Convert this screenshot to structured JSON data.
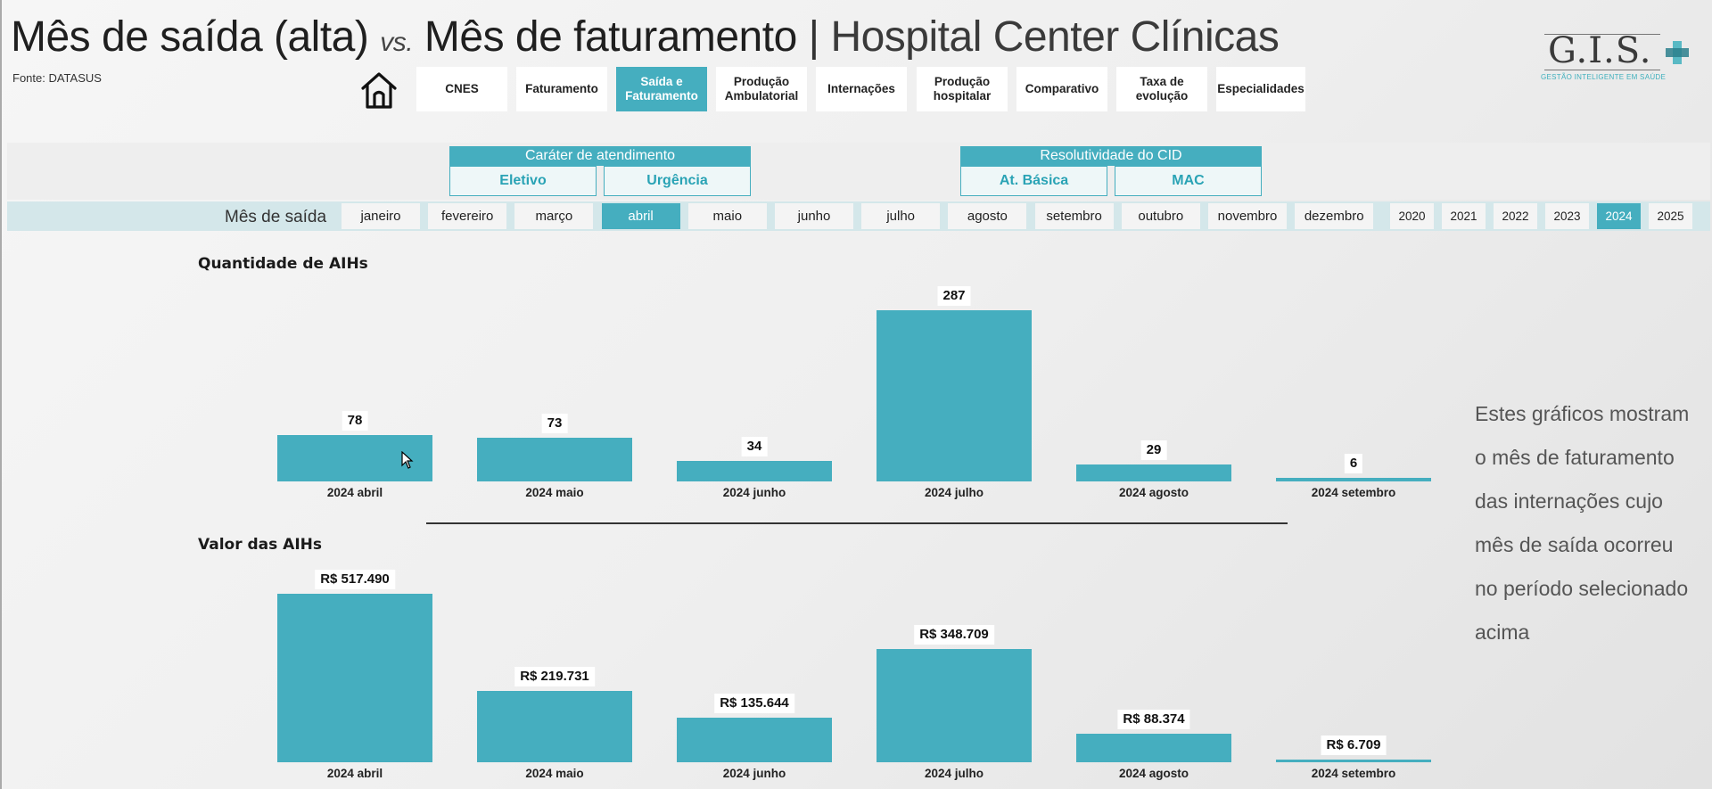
{
  "header": {
    "title_part1": "Mês de saída (alta)",
    "title_vs": "vs.",
    "title_part2": "Mês de faturamento",
    "title_sep": "|",
    "title_part3": "Hospital Center Clínicas",
    "source": "Fonte: DATASUS"
  },
  "logo": {
    "text": "G.I.S.",
    "subtitle": "GESTÃO INTELIGENTE EM SAÚDE"
  },
  "nav": {
    "home_icon": "home-icon",
    "items": [
      {
        "label": "CNES",
        "active": false
      },
      {
        "label": "Faturamento",
        "active": false
      },
      {
        "label": "Saída e\nFaturamento",
        "active": true
      },
      {
        "label": "Produção\nAmbulatorial",
        "active": false
      },
      {
        "label": "Internações",
        "active": false
      },
      {
        "label": "Produção\nhospitalar",
        "active": false
      },
      {
        "label": "Comparativo",
        "active": false
      },
      {
        "label": "Taxa de\nevolução",
        "active": false
      },
      {
        "label": "Especialidades",
        "active": false
      }
    ]
  },
  "filters": {
    "carater": {
      "title": "Caráter de atendimento",
      "options": [
        "Eletivo",
        "Urgência"
      ]
    },
    "resolutividade": {
      "title": "Resolutividade do CID",
      "options": [
        "At. Básica",
        "MAC"
      ]
    }
  },
  "month_filter": {
    "label": "Mês de saída",
    "months": [
      "janeiro",
      "fevereiro",
      "março",
      "abril",
      "maio",
      "junho",
      "julho",
      "agosto",
      "setembro",
      "outubro",
      "novembro",
      "dezembro"
    ],
    "selected_month": "abril",
    "years": [
      "2020",
      "2021",
      "2022",
      "2023",
      "2024",
      "2025"
    ],
    "selected_year": "2024"
  },
  "chart_data": [
    {
      "type": "bar",
      "title": "Quantidade de AIHs",
      "categories": [
        "2024 abril",
        "2024 maio",
        "2024 junho",
        "2024 julho",
        "2024 agosto",
        "2024 setembro"
      ],
      "values": [
        78,
        73,
        34,
        287,
        29,
        6
      ],
      "value_labels": [
        "78",
        "73",
        "34",
        "287",
        "29",
        "6"
      ],
      "color": "#45aebf"
    },
    {
      "type": "bar",
      "title": "Valor das AIHs",
      "categories": [
        "2024 abril",
        "2024 maio",
        "2024 junho",
        "2024 julho",
        "2024 agosto",
        "2024 setembro"
      ],
      "values": [
        517490,
        219731,
        135644,
        348709,
        88374,
        6709
      ],
      "value_labels": [
        "R$ 517.490",
        "R$ 219.731",
        "R$ 135.644",
        "R$ 348.709",
        "R$ 88.374",
        "R$ 6.709"
      ],
      "color": "#45aebf"
    }
  ],
  "side_note": "Estes gráficos mostram o mês de faturamento das internações cujo mês de saída ocorreu no período selecionado acima"
}
